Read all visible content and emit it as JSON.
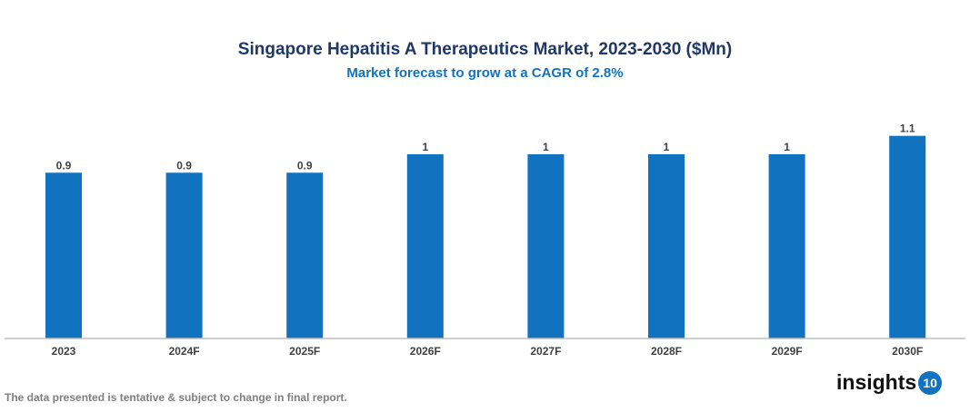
{
  "chart_data": {
    "type": "bar",
    "title": "Singapore Hepatitis A Therapeutics Market, 2023-2030 ($Mn)",
    "subtitle": "Market forecast to grow at a CAGR of 2.8%",
    "categories": [
      "2023",
      "2024F",
      "2025F",
      "2026F",
      "2027F",
      "2028F",
      "2029F",
      "2030F"
    ],
    "values": [
      0.9,
      0.9,
      0.9,
      1,
      1,
      1,
      1,
      1.1
    ],
    "data_labels": [
      "0.9",
      "0.9",
      "0.9",
      "1",
      "1",
      "1",
      "1",
      "1.1"
    ],
    "xlabel": "",
    "ylabel": "",
    "ylim": [
      0,
      1.2
    ],
    "grid": false,
    "bar_color": "#1172c0"
  },
  "footer": {
    "note": "The data presented is tentative & subject to change in final report."
  },
  "logo": {
    "text": "insights",
    "badge": "10"
  }
}
